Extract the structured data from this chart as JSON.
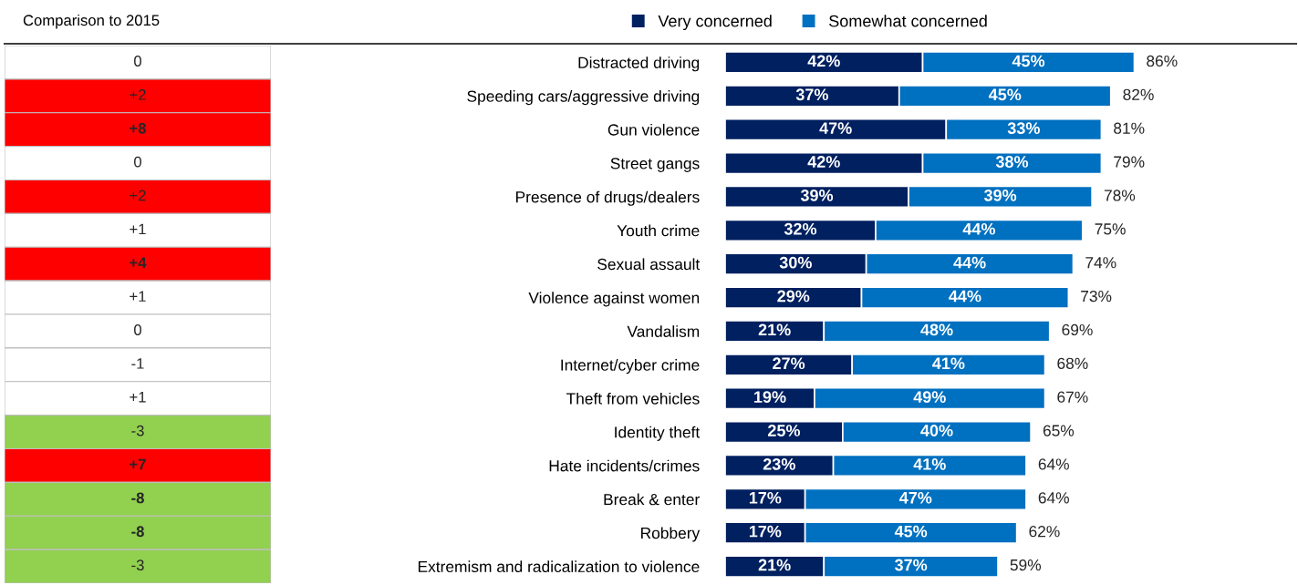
{
  "chart_data": [
    {
      "type": "heatmap",
      "title": "Comparison to 2015",
      "categories": [
        null
      ],
      "y_categories": [
        null,
        null,
        null,
        null,
        null,
        null,
        null,
        null,
        null,
        null,
        null,
        null,
        null,
        null,
        null,
        null
      ],
      "cells": [
        [
          0
        ],
        [
          2
        ],
        [
          8
        ],
        [
          0
        ],
        [
          2
        ],
        [
          1
        ],
        [
          4
        ],
        [
          1
        ],
        [
          0
        ],
        [
          -1
        ],
        [
          1
        ],
        [
          -3
        ],
        [
          7
        ],
        [
          -8
        ],
        [
          -8
        ],
        [
          -3
        ]
      ],
      "cell_labels": [
        [
          "0"
        ],
        [
          "+2"
        ],
        [
          "+8"
        ],
        [
          "0"
        ],
        [
          "+2"
        ],
        [
          "+1"
        ],
        [
          "+4"
        ],
        [
          "+1"
        ],
        [
          "0"
        ],
        [
          "-1"
        ],
        [
          "+1"
        ],
        [
          "-3"
        ],
        [
          "+7"
        ],
        [
          "-8"
        ],
        [
          "-8"
        ],
        [
          "-3"
        ]
      ],
      "colors": [
        "#ffffff",
        "#ff0000",
        "#ff0000",
        "#ffffff",
        "#ff0000",
        "#ffffff",
        "#ff0000",
        "#ffffff",
        "#ffffff",
        "#ffffff",
        "#ffffff",
        "#92d050",
        "#ff0000",
        "#92d050",
        "#92d050",
        "#92d050"
      ],
      "tick_labels": false
    },
    {
      "type": "bar",
      "orientation": "horizontal",
      "stacked": true,
      "legend": "top",
      "categories": [
        "Distracted driving",
        "Speeding cars/aggressive driving",
        "Gun violence",
        "Street gangs",
        "Presence of drugs/dealers",
        "Youth crime",
        "Sexual assault",
        "Violence against women",
        "Vandalism",
        "Internet/cyber crime",
        "Theft from vehicles",
        "Identity theft",
        "Hate incidents/crimes",
        "Break & enter",
        "Robbery",
        "Extremism and radicalization to violence"
      ],
      "series": [
        {
          "name": "Very concerned",
          "color": "#002060",
          "values": [
            42,
            37,
            47,
            42,
            39,
            32,
            30,
            29,
            21,
            27,
            19,
            25,
            23,
            17,
            17,
            21
          ],
          "value_labels": [
            "42%",
            "37%",
            "47%",
            "42%",
            "39%",
            "32%",
            "30%",
            "29%",
            "21%",
            "27%",
            "19%",
            "25%",
            "23%",
            "17%",
            "17%",
            "21%"
          ]
        },
        {
          "name": "Somewhat concerned",
          "color": "#0070c0",
          "values": [
            45,
            45,
            33,
            38,
            39,
            44,
            44,
            44,
            48,
            41,
            49,
            40,
            41,
            47,
            45,
            37
          ],
          "value_labels": [
            "45%",
            "45%",
            "33%",
            "38%",
            "39%",
            "44%",
            "44%",
            "44%",
            "48%",
            "41%",
            "49%",
            "40%",
            "41%",
            "47%",
            "45%",
            "37%"
          ]
        }
      ],
      "totals": [
        "86%",
        "82%",
        "81%",
        "79%",
        "78%",
        "75%",
        "74%",
        "73%",
        "69%",
        "68%",
        "67%",
        "65%",
        "64%",
        "64%",
        "62%",
        "59%"
      ],
      "tick_labels": "y"
    }
  ]
}
